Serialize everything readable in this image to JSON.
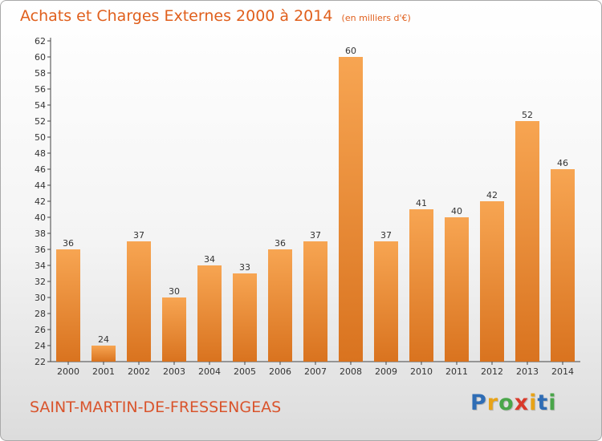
{
  "chart_data": {
    "type": "bar",
    "title": "Achats et Charges Externes 2000 à 2014",
    "subtitle": "(en milliers d'€)",
    "categories": [
      "2000",
      "2001",
      "2002",
      "2003",
      "2004",
      "2005",
      "2006",
      "2007",
      "2008",
      "2009",
      "2010",
      "2011",
      "2012",
      "2013",
      "2014"
    ],
    "values": [
      36,
      24,
      37,
      30,
      34,
      33,
      36,
      37,
      60,
      37,
      41,
      40,
      42,
      52,
      46
    ],
    "ylim": [
      22,
      62
    ],
    "yticks": [
      22,
      24,
      26,
      28,
      30,
      32,
      34,
      36,
      38,
      40,
      42,
      44,
      46,
      48,
      50,
      52,
      54,
      56,
      58,
      60,
      62
    ],
    "grid": false,
    "data_labels": true,
    "bar_color_top": "#f7a552",
    "bar_color_bottom": "#d9731f"
  },
  "footer": {
    "commune": "SAINT-MARTIN-DE-FRESSENGEAS",
    "logo_text": "Proxiti",
    "logo_colors": [
      "#2f6db5",
      "#e8a317",
      "#4aa64a",
      "#d93a2b",
      "#e8a317",
      "#2f6db5",
      "#4aa64a"
    ]
  },
  "colors": {
    "title": "#e05f1c",
    "commune": "#d9542c",
    "axis": "#444444"
  }
}
